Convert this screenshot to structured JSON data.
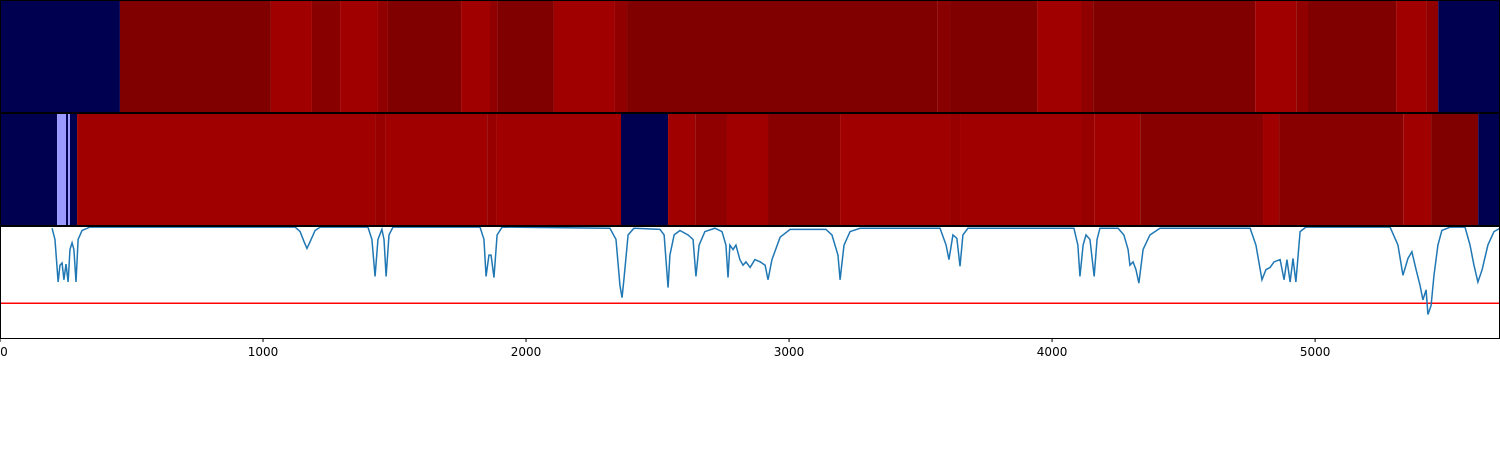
{
  "chart_data": {
    "type": "strip-line",
    "xlim": [
      0,
      5703
    ],
    "xticks": [
      0,
      1000,
      2000,
      3000,
      4000,
      5000
    ],
    "ylim": [
      0,
      1
    ],
    "strips": [
      {
        "edges": [
          0,
          456,
          1030,
          1186,
          1293,
          1437,
          1475,
          1753,
          1863,
          1890,
          2106,
          2338,
          2384,
          3563,
          3612,
          3943,
          4110,
          4156,
          4772,
          4928,
          4973,
          5308,
          5422,
          5468,
          5703
        ],
        "colors": [
          "#000050",
          "#800000",
          "#a00000",
          "#880000",
          "#a00000",
          "#900000",
          "#800000",
          "#a00000",
          "#900000",
          "#800000",
          "#a00000",
          "#900000",
          "#800000",
          "#880000",
          "#800000",
          "#a00000",
          "#900000",
          "#800000",
          "#a00000",
          "#900000",
          "#800000",
          "#a00000",
          "#900000",
          "#000050"
        ]
      },
      {
        "edges": [
          0,
          217,
          251,
          259,
          266,
          293,
          1426,
          1464,
          1852,
          1886,
          2361,
          2540,
          2643,
          2764,
          2920,
          3194,
          3612,
          3650,
          4110,
          4160,
          4335,
          4802,
          4863,
          5335,
          5441,
          5620,
          5703
        ],
        "colors": [
          "#000050",
          "#9999ff",
          "#000050",
          "#9999ff",
          "#000050",
          "#a00000",
          "#980000",
          "#a00000",
          "#980000",
          "#a00000",
          "#000050",
          "#a00000",
          "#900000",
          "#a00000",
          "#880000",
          "#a00000",
          "#980000",
          "#a00000",
          "#980000",
          "#a00000",
          "#880000",
          "#a00000",
          "#880000",
          "#a00000",
          "#800000",
          "#000050"
        ]
      }
    ],
    "series": [
      {
        "color": "#1f77b4",
        "x": [
          198,
          209,
          221,
          228,
          236,
          243,
          251,
          259,
          266,
          274,
          281,
          289,
          297,
          312,
          342,
          1122,
          1141,
          1156,
          1167,
          1179,
          1198,
          1217,
          1399,
          1414,
          1426,
          1437,
          1452,
          1460,
          1468,
          1479,
          1494,
          1825,
          1840,
          1848,
          1859,
          1867,
          1878,
          1890,
          1909,
          2319,
          2342,
          2357,
          2365,
          2372,
          2388,
          2410,
          2509,
          2525,
          2540,
          2547,
          2563,
          2585,
          2616,
          2635,
          2646,
          2658,
          2680,
          2718,
          2745,
          2760,
          2768,
          2775,
          2787,
          2798,
          2813,
          2825,
          2836,
          2852,
          2870,
          2890,
          2909,
          2920,
          2935,
          2966,
          3004,
          3140,
          3163,
          3186,
          3194,
          3209,
          3232,
          3270,
          3574,
          3597,
          3608,
          3623,
          3638,
          3650,
          3661,
          3680,
          4083,
          4098,
          4106,
          4118,
          4129,
          4144,
          4160,
          4171,
          4182,
          4251,
          4273,
          4289,
          4296,
          4308,
          4319,
          4330,
          4346,
          4372,
          4410,
          4753,
          4775,
          4798,
          4813,
          4829,
          4844,
          4867,
          4882,
          4893,
          4905,
          4916,
          4927,
          4943,
          4965,
          5285,
          5315,
          5334,
          5353,
          5368,
          5384,
          5399,
          5410,
          5422,
          5429,
          5441,
          5452,
          5467,
          5482,
          5513,
          5570,
          5589,
          5604,
          5619,
          5635,
          5657,
          5680,
          5703
        ],
        "values": [
          0.98,
          0.88,
          0.5,
          0.65,
          0.67,
          0.52,
          0.66,
          0.5,
          0.79,
          0.85,
          0.79,
          0.5,
          0.88,
          0.96,
          0.99,
          0.99,
          0.95,
          0.86,
          0.8,
          0.86,
          0.96,
          0.99,
          0.99,
          0.88,
          0.55,
          0.88,
          0.97,
          0.88,
          0.55,
          0.92,
          0.99,
          0.99,
          0.88,
          0.55,
          0.74,
          0.74,
          0.54,
          0.92,
          0.99,
          0.98,
          0.88,
          0.47,
          0.36,
          0.52,
          0.92,
          0.98,
          0.97,
          0.92,
          0.45,
          0.74,
          0.92,
          0.96,
          0.92,
          0.88,
          0.55,
          0.83,
          0.95,
          0.98,
          0.95,
          0.83,
          0.54,
          0.83,
          0.79,
          0.83,
          0.7,
          0.65,
          0.68,
          0.63,
          0.7,
          0.68,
          0.65,
          0.52,
          0.7,
          0.9,
          0.97,
          0.97,
          0.92,
          0.74,
          0.52,
          0.83,
          0.95,
          0.98,
          0.98,
          0.83,
          0.7,
          0.92,
          0.89,
          0.64,
          0.92,
          0.98,
          0.98,
          0.83,
          0.55,
          0.83,
          0.92,
          0.88,
          0.55,
          0.88,
          0.98,
          0.98,
          0.92,
          0.79,
          0.65,
          0.68,
          0.61,
          0.49,
          0.79,
          0.92,
          0.98,
          0.98,
          0.83,
          0.52,
          0.61,
          0.63,
          0.68,
          0.7,
          0.52,
          0.7,
          0.5,
          0.71,
          0.5,
          0.95,
          0.99,
          0.99,
          0.83,
          0.56,
          0.71,
          0.77,
          0.61,
          0.47,
          0.34,
          0.43,
          0.21,
          0.29,
          0.56,
          0.83,
          0.96,
          0.99,
          0.99,
          0.83,
          0.65,
          0.5,
          0.61,
          0.83,
          0.95,
          0.98
        ]
      }
    ],
    "threshold": {
      "value": 0.31,
      "color": "#ff0000"
    }
  }
}
